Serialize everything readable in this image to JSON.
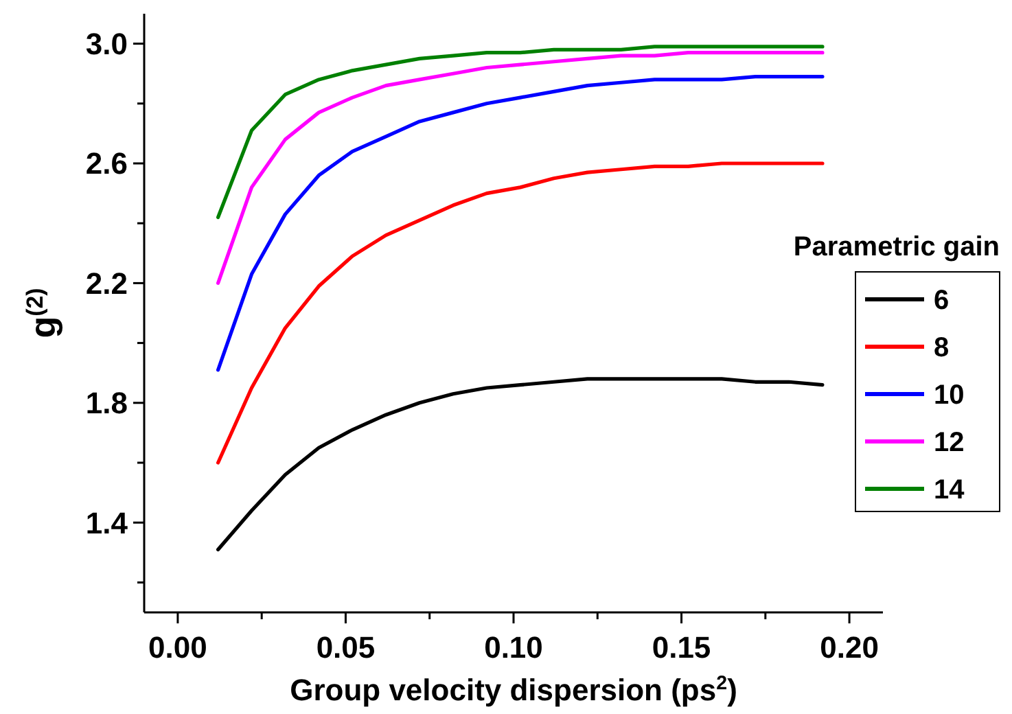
{
  "chart_data": {
    "type": "line",
    "xlabel": "Group velocity dispersion (ps$^{2}$)",
    "ylabel": "g$^{(2)}$",
    "legend_title": "Parametric gain",
    "legend": "right",
    "grid": false,
    "line_style": "solid",
    "marker": "none",
    "x": [
      0.012,
      0.022,
      0.032,
      0.042,
      0.052,
      0.062,
      0.072,
      0.082,
      0.092,
      0.102,
      0.112,
      0.122,
      0.132,
      0.142,
      0.152,
      0.162,
      0.172,
      0.182,
      0.192
    ],
    "xlim": [
      -0.01,
      0.21
    ],
    "xticks": [
      {
        "value": 0,
        "label": "0.00"
      },
      {
        "value": 0.025,
        "label": null
      },
      {
        "value": 0.05,
        "label": "0.05"
      },
      {
        "value": 0.075,
        "label": null
      },
      {
        "value": 0.1,
        "label": "0.10"
      },
      {
        "value": 0.125,
        "label": null
      },
      {
        "value": 0.15,
        "label": "0.15"
      },
      {
        "value": 0.175,
        "label": null
      },
      {
        "value": 0.2,
        "label": "0.20"
      }
    ],
    "ylim": [
      1.1,
      3.1
    ],
    "yticks": [
      {
        "value": 1.2,
        "label": null
      },
      1.4,
      {
        "value": 1.6,
        "label": null
      },
      1.8,
      {
        "value": 2.0,
        "label": null
      },
      2.2,
      {
        "value": 2.4,
        "label": null
      },
      2.6,
      {
        "value": 2.8,
        "label": null
      },
      {
        "value": 3.0,
        "label": "3.0"
      }
    ],
    "series": [
      {
        "name": "6",
        "color": "#000000",
        "values": [
          1.31,
          1.44,
          1.56,
          1.65,
          1.71,
          1.76,
          1.8,
          1.83,
          1.85,
          1.86,
          1.87,
          1.88,
          1.88,
          1.88,
          1.88,
          1.88,
          1.87,
          1.87,
          1.86
        ]
      },
      {
        "name": "8",
        "color": "#ff0000",
        "values": [
          1.6,
          1.85,
          2.05,
          2.19,
          2.29,
          2.36,
          2.41,
          2.46,
          2.5,
          2.52,
          2.55,
          2.57,
          2.58,
          2.59,
          2.59,
          2.6,
          2.6,
          2.6,
          2.6
        ]
      },
      {
        "name": "10",
        "color": "#0000ff",
        "values": [
          1.91,
          2.23,
          2.43,
          2.56,
          2.64,
          2.69,
          2.74,
          2.77,
          2.8,
          2.82,
          2.84,
          2.86,
          2.87,
          2.88,
          2.88,
          2.88,
          2.89,
          2.89,
          2.89
        ]
      },
      {
        "name": "12",
        "color": "#ff00ff",
        "values": [
          2.2,
          2.52,
          2.68,
          2.77,
          2.82,
          2.86,
          2.88,
          2.9,
          2.92,
          2.93,
          2.94,
          2.95,
          2.96,
          2.96,
          2.97,
          2.97,
          2.97,
          2.97,
          2.97
        ]
      },
      {
        "name": "14",
        "color": "#008000",
        "values": [
          2.42,
          2.71,
          2.83,
          2.88,
          2.91,
          2.93,
          2.95,
          2.96,
          2.97,
          2.97,
          2.98,
          2.98,
          2.98,
          2.99,
          2.99,
          2.99,
          2.99,
          2.99,
          2.99
        ]
      }
    ]
  }
}
